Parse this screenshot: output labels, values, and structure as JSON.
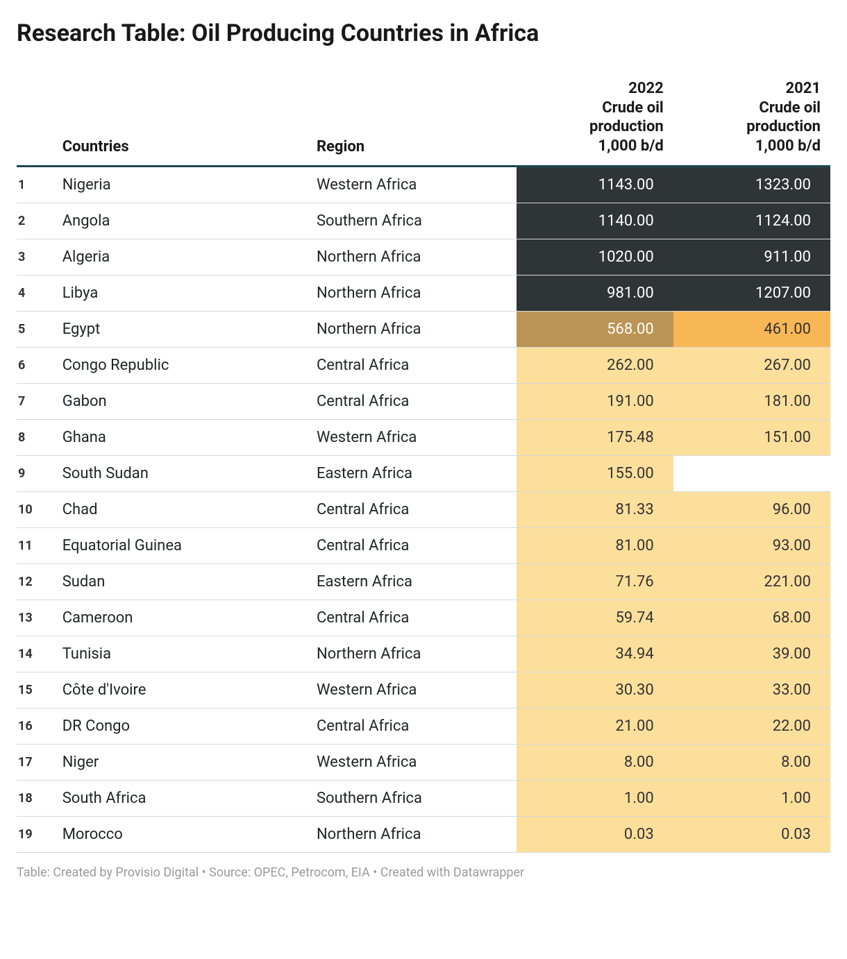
{
  "title": "Research Table: Oil Producing Countries in Africa",
  "footer": "Table: Created by Provisio Digital • Source: OPEC, Petrocom, EIA • Created with Datawrapper",
  "colors": {
    "header_rule": "#1d4a52",
    "row_rule": "#d8d8d8",
    "text": "#212529",
    "footer_text": "#9a9a9a",
    "heat_dark_bg": "#2f3436",
    "heat_dark_text": "#ffffff",
    "heat_brown_bg": "#bb9555",
    "heat_orange_bg": "#f8b755",
    "heat_light_bg": "#fcdf9b",
    "heat_light_text": "#333333",
    "blank_bg": "#ffffff"
  },
  "columns": {
    "rank": "",
    "country": "Countries",
    "region": "Region",
    "p2022": "2022\nCrude oil\nproduction\n1,000 b/d",
    "p2021": "2021\nCrude oil\nproduction\n1,000 b/d"
  },
  "rows": [
    {
      "rank": "1",
      "country": "Nigeria",
      "region": "Western Africa",
      "p2022": "1143.00",
      "p2021": "1323.00",
      "c2022": "dark",
      "c2021": "dark"
    },
    {
      "rank": "2",
      "country": "Angola",
      "region": "Southern Africa",
      "p2022": "1140.00",
      "p2021": "1124.00",
      "c2022": "dark",
      "c2021": "dark"
    },
    {
      "rank": "3",
      "country": "Algeria",
      "region": "Northern Africa",
      "p2022": "1020.00",
      "p2021": "911.00",
      "c2022": "dark",
      "c2021": "dark"
    },
    {
      "rank": "4",
      "country": "Libya",
      "region": "Northern Africa",
      "p2022": "981.00",
      "p2021": "1207.00",
      "c2022": "dark",
      "c2021": "dark"
    },
    {
      "rank": "5",
      "country": "Egypt",
      "region": "Northern Africa",
      "p2022": "568.00",
      "p2021": "461.00",
      "c2022": "brown",
      "c2021": "orange"
    },
    {
      "rank": "6",
      "country": "Congo Republic",
      "region": "Central Africa",
      "p2022": "262.00",
      "p2021": "267.00",
      "c2022": "light",
      "c2021": "light"
    },
    {
      "rank": "7",
      "country": "Gabon",
      "region": "Central Africa",
      "p2022": "191.00",
      "p2021": "181.00",
      "c2022": "light",
      "c2021": "light"
    },
    {
      "rank": "8",
      "country": "Ghana",
      "region": "Western Africa",
      "p2022": "175.48",
      "p2021": "151.00",
      "c2022": "light",
      "c2021": "light"
    },
    {
      "rank": "9",
      "country": "South Sudan",
      "region": "Eastern Africa",
      "p2022": "155.00",
      "p2021": "",
      "c2022": "light",
      "c2021": "blank"
    },
    {
      "rank": "10",
      "country": "Chad",
      "region": "Central Africa",
      "p2022": "81.33",
      "p2021": "96.00",
      "c2022": "light",
      "c2021": "light"
    },
    {
      "rank": "11",
      "country": "Equatorial Guinea",
      "region": "Central Africa",
      "p2022": "81.00",
      "p2021": "93.00",
      "c2022": "light",
      "c2021": "light"
    },
    {
      "rank": "12",
      "country": "Sudan",
      "region": "Eastern Africa",
      "p2022": "71.76",
      "p2021": "221.00",
      "c2022": "light",
      "c2021": "light"
    },
    {
      "rank": "13",
      "country": "Cameroon",
      "region": "Central Africa",
      "p2022": "59.74",
      "p2021": "68.00",
      "c2022": "light",
      "c2021": "light"
    },
    {
      "rank": "14",
      "country": "Tunisia",
      "region": "Northern Africa",
      "p2022": "34.94",
      "p2021": "39.00",
      "c2022": "light",
      "c2021": "light"
    },
    {
      "rank": "15",
      "country": "Côte d'Ivoire",
      "region": "Western Africa",
      "p2022": "30.30",
      "p2021": "33.00",
      "c2022": "light",
      "c2021": "light"
    },
    {
      "rank": "16",
      "country": "DR Congo",
      "region": "Central Africa",
      "p2022": "21.00",
      "p2021": "22.00",
      "c2022": "light",
      "c2021": "light"
    },
    {
      "rank": "17",
      "country": "Niger",
      "region": "Western Africa",
      "p2022": "8.00",
      "p2021": "8.00",
      "c2022": "light",
      "c2021": "light"
    },
    {
      "rank": "18",
      "country": "South Africa",
      "region": "Southern Africa",
      "p2022": "1.00",
      "p2021": "1.00",
      "c2022": "light",
      "c2021": "light"
    },
    {
      "rank": "19",
      "country": "Morocco",
      "region": "Northern Africa",
      "p2022": "0.03",
      "p2021": "0.03",
      "c2022": "light",
      "c2021": "light"
    }
  ]
}
